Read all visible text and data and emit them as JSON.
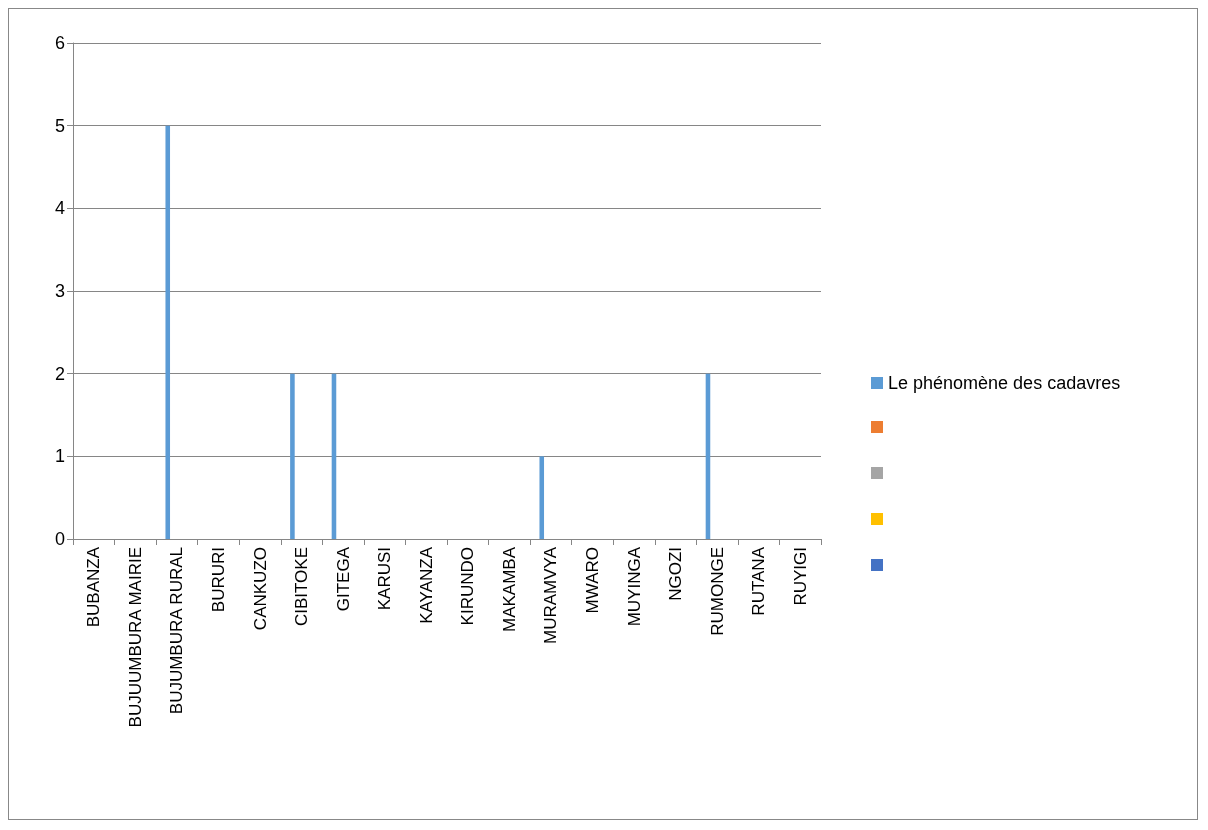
{
  "chart_data": {
    "type": "bar",
    "categories": [
      "BUBANZA",
      "BUJUUMBURA MAIRIE",
      "BUJUMBURA RURAL",
      "BURURI",
      "CANKUZO",
      "CIBITOKE",
      "GITEGA",
      "KARUSI",
      "KAYANZA",
      "KIRUNDO",
      "MAKAMBA",
      "MURAMVYA",
      "MWARO",
      "MUYINGA",
      "NGOZI",
      "RUMONGE",
      "RUTANA",
      "RUYIGI"
    ],
    "series": [
      {
        "name": "Le phénomène des cadavres",
        "color": "#5b9bd5",
        "values": [
          0,
          0,
          5,
          0,
          0,
          2,
          2,
          0,
          0,
          0,
          0,
          1,
          0,
          0,
          0,
          2,
          0,
          0
        ]
      },
      {
        "color": "#ed7d31",
        "values": [
          null,
          null,
          null,
          null,
          null,
          null,
          null,
          null,
          null,
          null,
          null,
          null,
          null,
          null,
          null,
          null,
          null,
          null
        ]
      },
      {
        "color": "#a5a5a5",
        "values": [
          null,
          null,
          null,
          null,
          null,
          null,
          null,
          null,
          null,
          null,
          null,
          null,
          null,
          null,
          null,
          null,
          null,
          null
        ]
      },
      {
        "color": "#ffc000",
        "values": [
          null,
          null,
          null,
          null,
          null,
          null,
          null,
          null,
          null,
          null,
          null,
          null,
          null,
          null,
          null,
          null,
          null,
          null
        ]
      },
      {
        "color": "#4472c4",
        "values": [
          null,
          null,
          null,
          null,
          null,
          null,
          null,
          null,
          null,
          null,
          null,
          null,
          null,
          null,
          null,
          null,
          null,
          null
        ]
      }
    ],
    "ylim": [
      0,
      6
    ],
    "yticks": [
      0,
      1,
      2,
      3,
      4,
      5,
      6
    ],
    "grid": "y",
    "legend": "right"
  }
}
